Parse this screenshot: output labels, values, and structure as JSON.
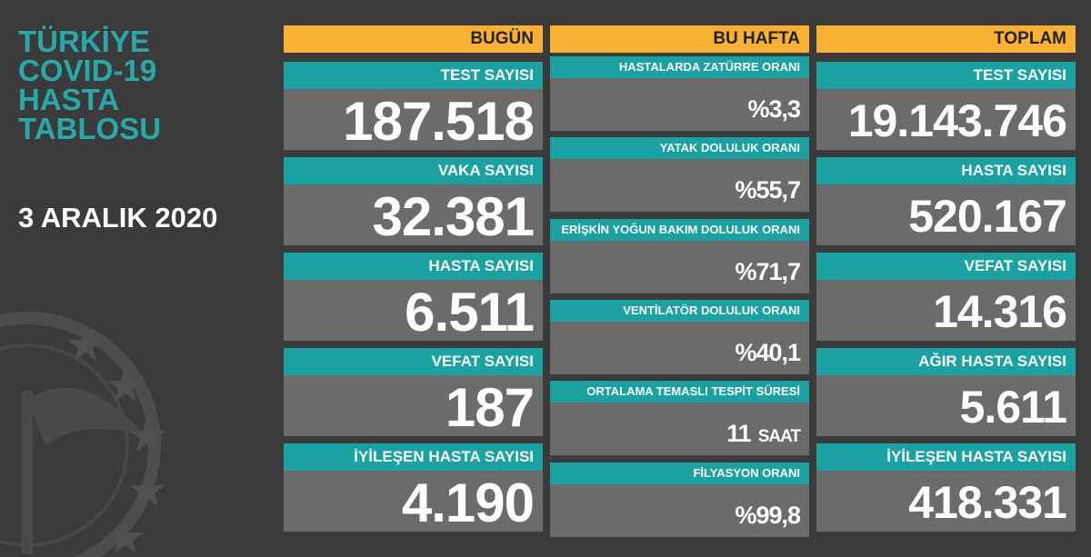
{
  "title": [
    "TÜRKİYE",
    "COVID-19",
    "HASTA",
    "TABLOSU"
  ],
  "date": "3 ARALIK 2020",
  "columns": [
    {
      "header": "BUGÜN",
      "items": [
        {
          "label": "TEST SAYISI",
          "value": "187.518"
        },
        {
          "label": "VAKA SAYISI",
          "value": "32.381"
        },
        {
          "label": "HASTA SAYISI",
          "value": "6.511"
        },
        {
          "label": "VEFAT SAYISI",
          "value": "187"
        },
        {
          "label": "İYİLEŞEN HASTA SAYISI",
          "value": "4.190"
        }
      ]
    },
    {
      "header": "BU HAFTA",
      "items": [
        {
          "label": "HASTALARDA ZATÜRRE ORANI",
          "value": "%3,3"
        },
        {
          "label": "YATAK DOLULUK ORANI",
          "value": "%55,7"
        },
        {
          "label": "ERİŞKİN YOĞUN BAKIM DOLULUK ORANI",
          "value": "%71,7"
        },
        {
          "label": "VENTİLATÖR DOLULUK ORANI",
          "value": "%40,1"
        },
        {
          "label": "ORTALAMA TEMASLI TESPİT SÜRESİ",
          "value": "11",
          "unit": "SAAT"
        },
        {
          "label": "FİLYASYON ORANI",
          "value": "%99,8"
        }
      ]
    },
    {
      "header": "TOPLAM",
      "items": [
        {
          "label": "TEST SAYISI",
          "value": "19.143.746"
        },
        {
          "label": "HASTA SAYISI",
          "value": "520.167"
        },
        {
          "label": "VEFAT SAYISI",
          "value": "14.316"
        },
        {
          "label": "AĞIR HASTA SAYISI",
          "value": "5.611"
        },
        {
          "label": "İYİLEŞEN HASTA SAYISI",
          "value": "418.331"
        }
      ]
    }
  ]
}
